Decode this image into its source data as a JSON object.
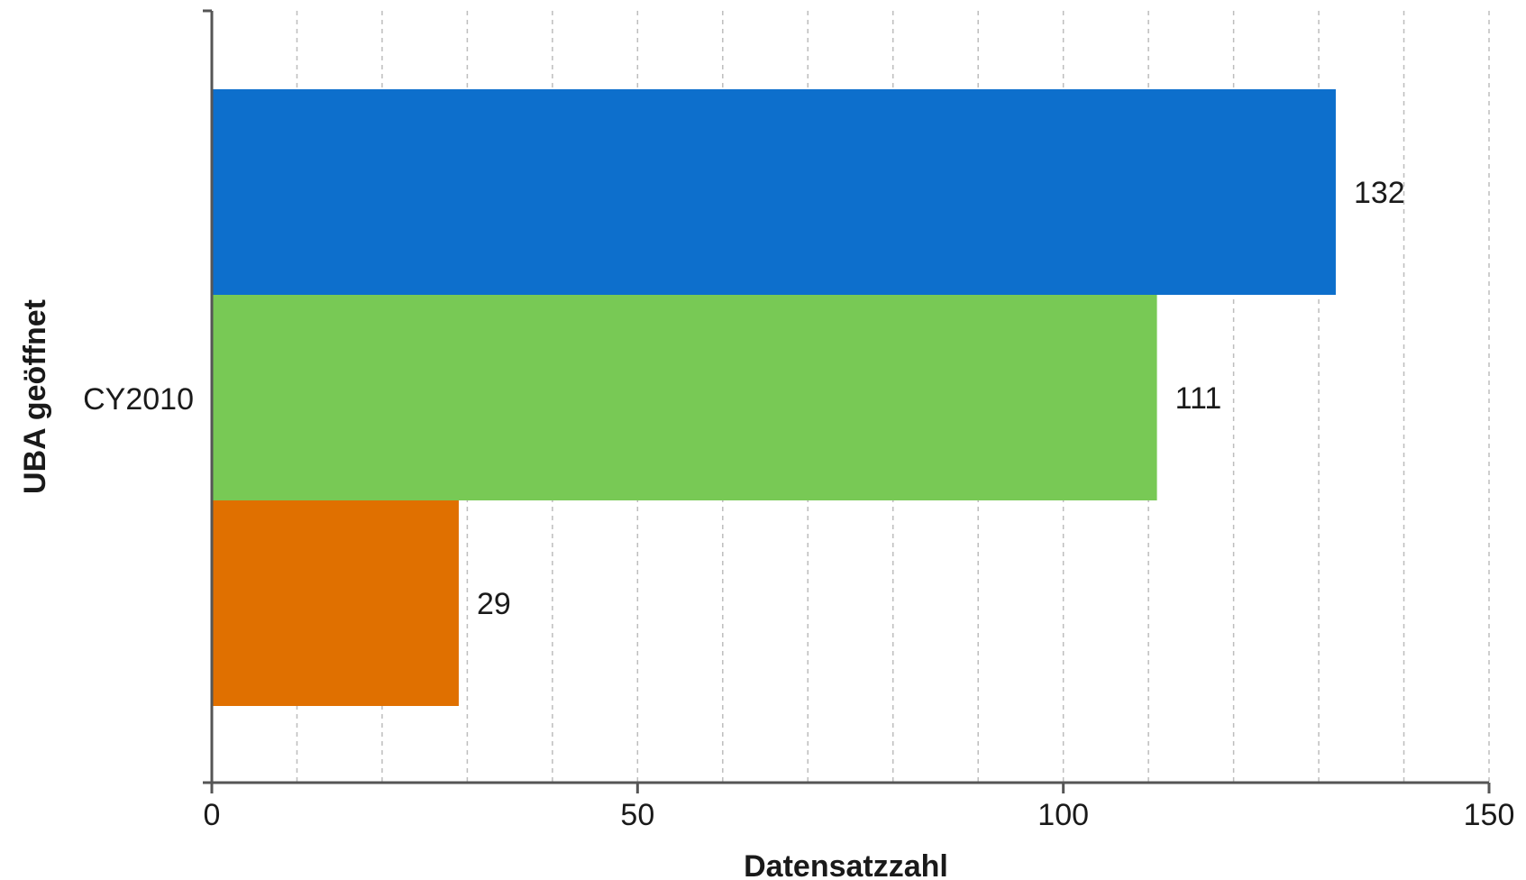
{
  "chart_data": {
    "type": "bar",
    "orientation": "horizontal",
    "categories": [
      "CY2010"
    ],
    "series": [
      {
        "values": [
          132
        ],
        "color": "#0d6fcc"
      },
      {
        "values": [
          111
        ],
        "color": "#78c955"
      },
      {
        "values": [
          29
        ],
        "color": "#e07000"
      }
    ],
    "xlabel": "Datensatzzahl",
    "ylabel": "UBA geöffnet",
    "xlim": [
      0,
      150
    ],
    "x_ticks": [
      "0",
      "50",
      "100",
      "150"
    ],
    "minor_grid_step": 10,
    "grid": true,
    "legend": "none"
  }
}
